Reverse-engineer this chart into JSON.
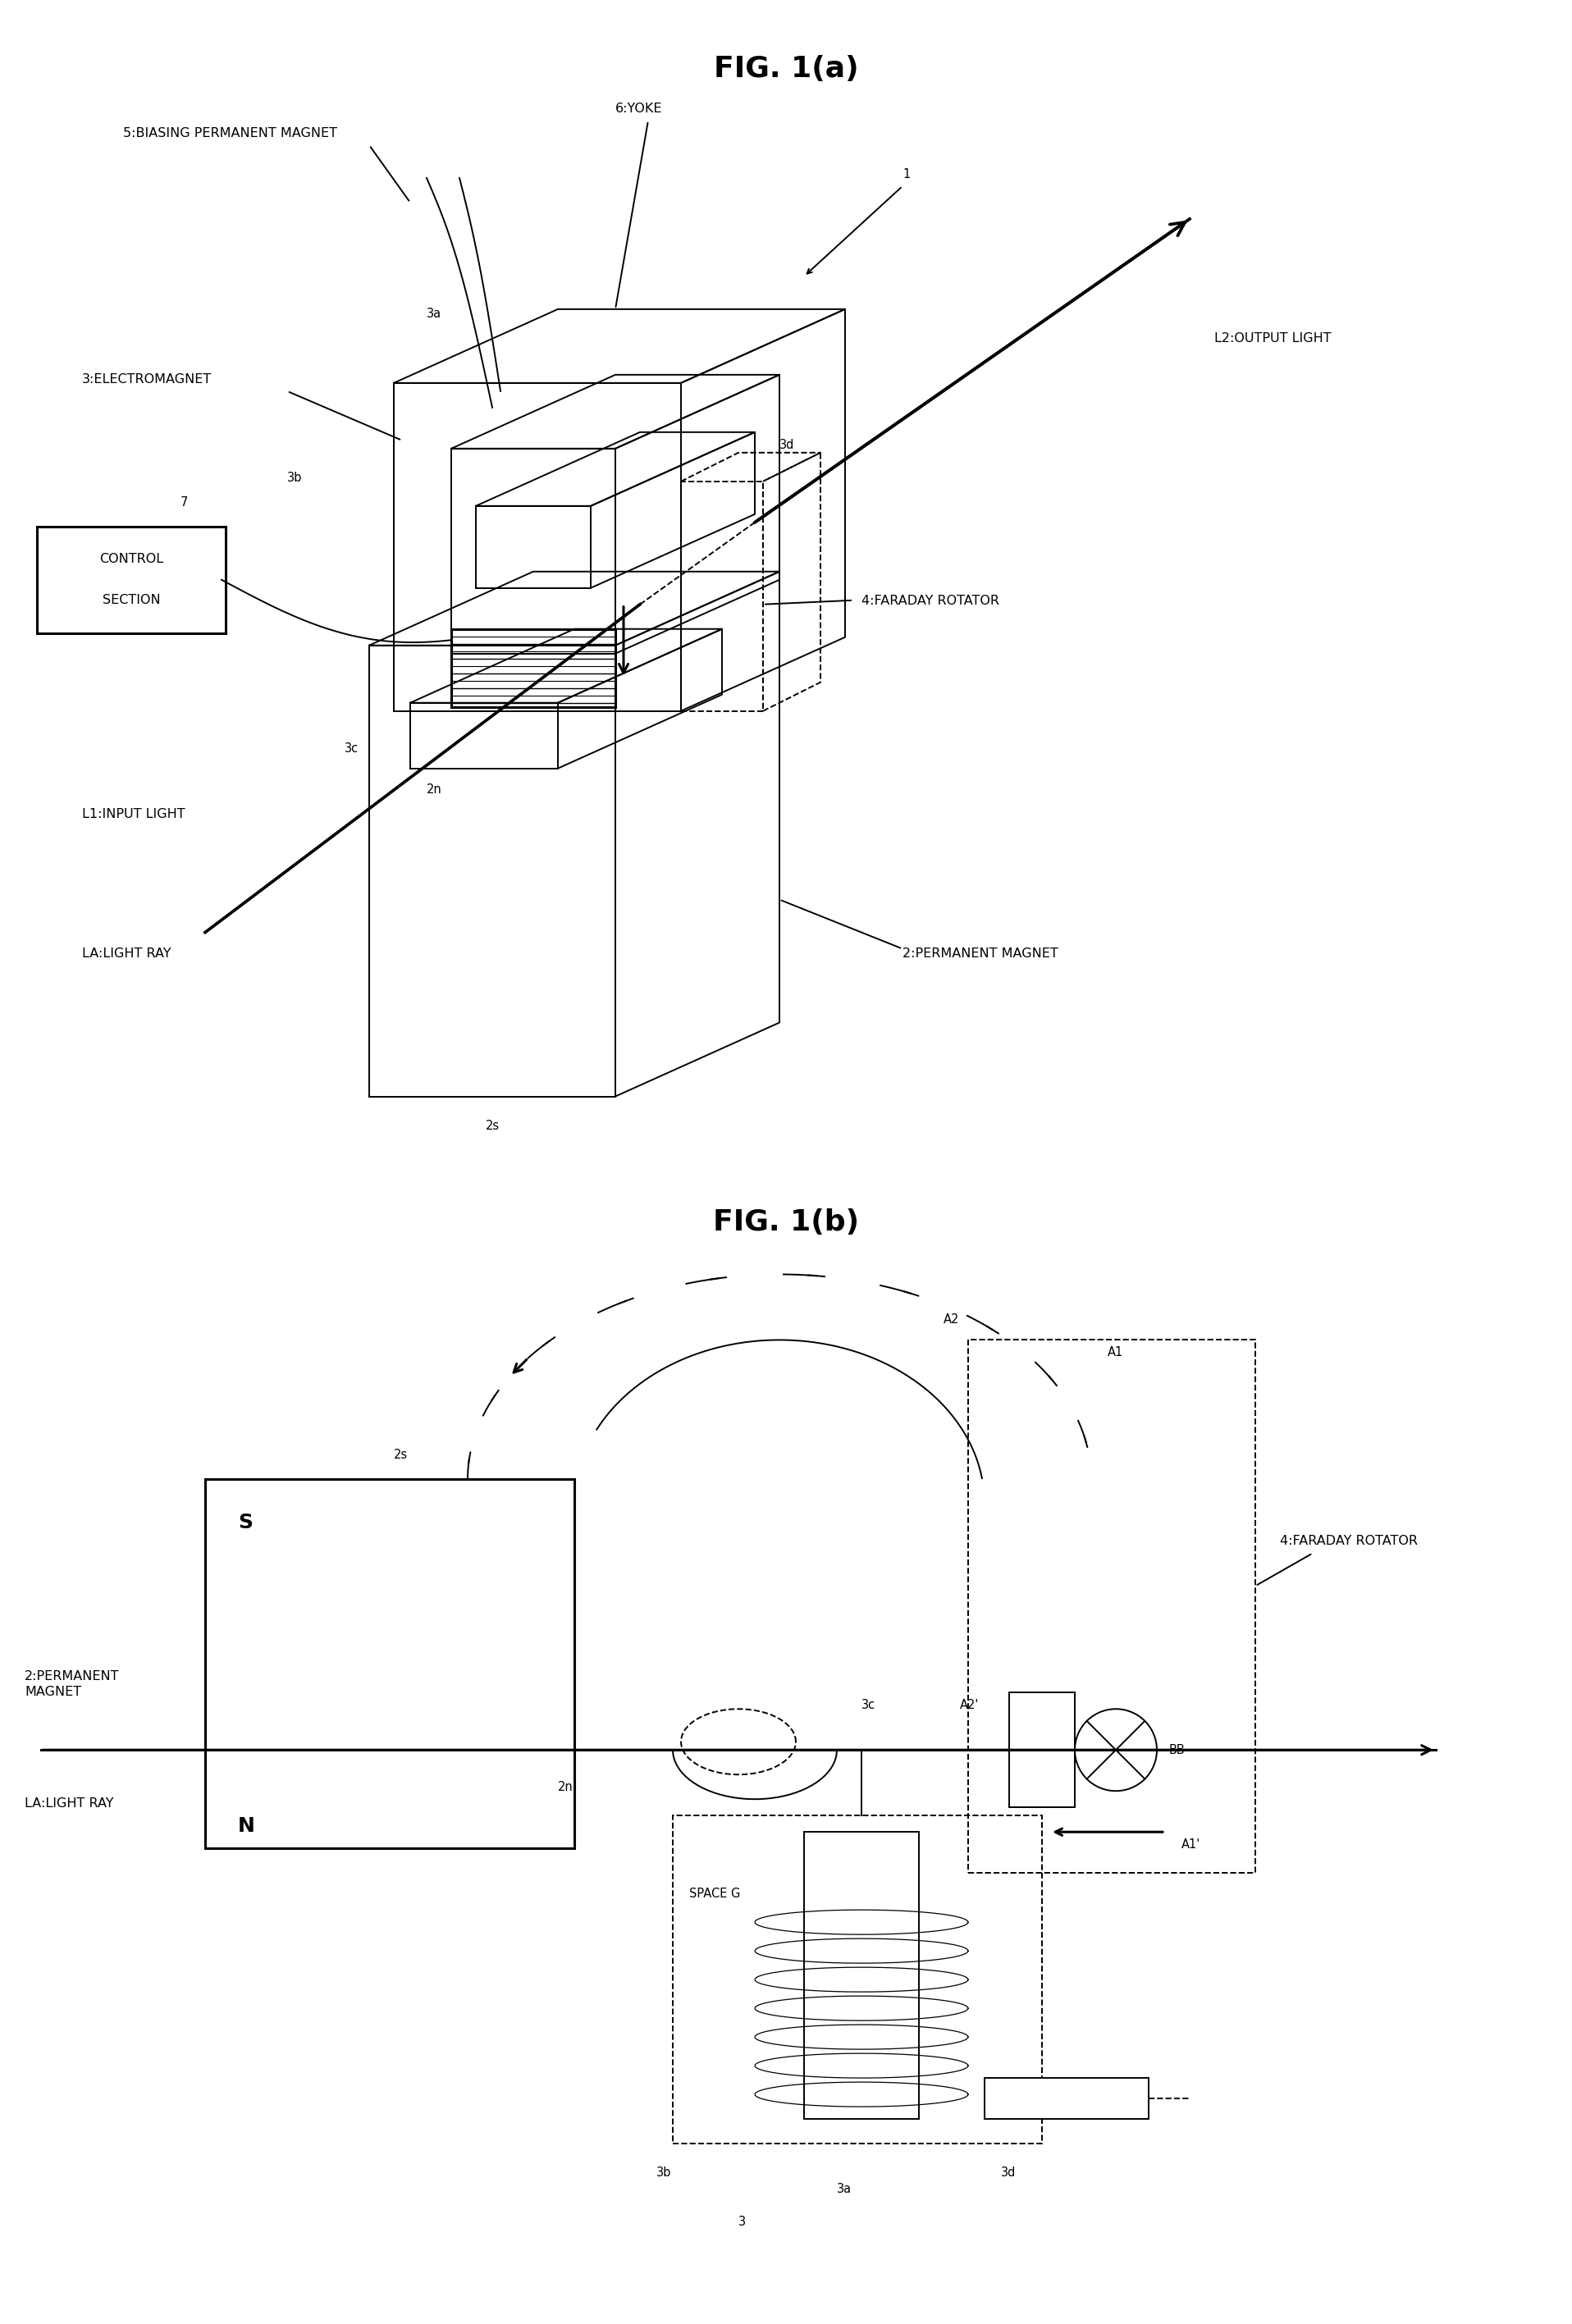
{
  "title_a": "FIG. 1(a)",
  "title_b": "FIG. 1(b)",
  "bg_color": "#ffffff",
  "lw": 1.4,
  "lw2": 2.2,
  "fs_title": 26,
  "fs_label": 11.5,
  "fs_small": 10.5,
  "labels_a": {
    "biasing": "5:BIASING PERMANENT MAGNET",
    "yoke": "6:YOKE",
    "ref1": "1",
    "electromagnet": "3:ELECTROMAGNET",
    "ref7": "7",
    "ref3b": "3b",
    "control_line1": "CONTROL",
    "control_line2": "SECTION",
    "ref3a": "3a",
    "ref3c": "3c",
    "ref2n": "2n",
    "l1": "L1:INPUT LIGHT",
    "la": "LA:LIGHT RAY",
    "l2": "L2:OUTPUT LIGHT",
    "faraday": "4:FARADAY ROTATOR",
    "ref3d": "3d",
    "perm_magnet": "2:PERMANENT MAGNET",
    "ref2s": "2s"
  },
  "labels_b": {
    "ref2s": "2s",
    "s_pole": "S",
    "n_pole": "N",
    "perm_magnet": "2:PERMANENT\nMAGNET",
    "ref3c": "3c",
    "ref2n": "2n",
    "space_g": "SPACE G",
    "ref3b": "3b",
    "ref3": "3",
    "ref3a": "3a",
    "ref3d": "3d",
    "a1": "A1",
    "a2": "A2",
    "a1p": "A1'",
    "a2p": "A2'",
    "bb": "BB",
    "faraday": "4:FARADAY ROTATOR",
    "la": "LA:LIGHT RAY"
  }
}
